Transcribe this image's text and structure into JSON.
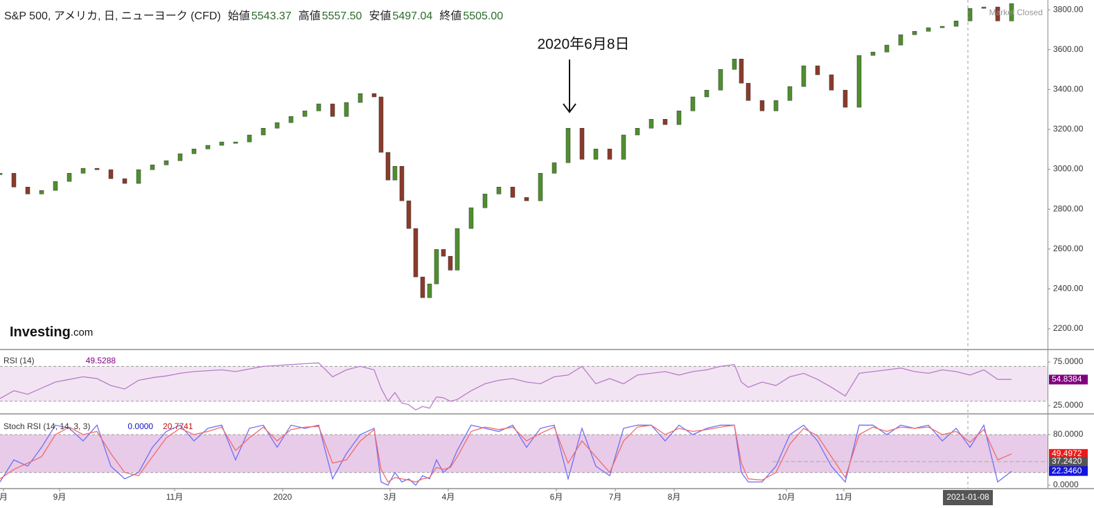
{
  "chart_data": [
    {
      "type": "candlestick",
      "title": "S&P 500, アメリカ, 日, ニューヨーク (CFD)",
      "header_values": [
        {
          "name": "始値",
          "value": "5543.37"
        },
        {
          "name": "高値",
          "value": "5557.50"
        },
        {
          "name": "安値",
          "value": "5497.04"
        },
        {
          "name": "終値",
          "value": "5505.00"
        }
      ],
      "status": "Market Closed",
      "watermark": [
        "Investing",
        ".com"
      ],
      "annotation": "2020年6月8日",
      "annotation_x": 41.1,
      "up_color": "#4f8f2e",
      "down_color": "#8b3b2b",
      "x": [
        0,
        1,
        2,
        3,
        4,
        5,
        6,
        7,
        8,
        9,
        10,
        11,
        12,
        13,
        14,
        15,
        16,
        17,
        18,
        19,
        20,
        21,
        22,
        23,
        24,
        25,
        26,
        27,
        27.5,
        28,
        28.5,
        29,
        29.5,
        30,
        30.5,
        31,
        31.5,
        32,
        32.5,
        33,
        34,
        35,
        36,
        37,
        38,
        39,
        40,
        41,
        42,
        43,
        44,
        45,
        46,
        47,
        48,
        49,
        50,
        51,
        52,
        53,
        53.5,
        54,
        55,
        56,
        57,
        58,
        59,
        60,
        61,
        62,
        63,
        64,
        65,
        66,
        67,
        68,
        69,
        70,
        71,
        72,
        73
      ],
      "series": [
        {
          "values": [
            2980,
            2911,
            2876,
            2894,
            2939,
            2980,
            3005,
            2998,
            2953,
            2929,
            2998,
            3022,
            3043,
            3078,
            3102,
            3120,
            3137,
            3137,
            3172,
            3206,
            3234,
            3265,
            3293,
            3328,
            3265,
            3335,
            3380,
            3363,
            3085,
            2946,
            3015,
            2842,
            2703,
            2460,
            2356,
            2425,
            2598,
            2564,
            2494,
            2703,
            2807,
            2876,
            2911,
            2859,
            2842,
            2980,
            3033,
            3206,
            3050,
            3102,
            3050,
            3172,
            3206,
            3251,
            3224,
            3293,
            3363,
            3397,
            3501,
            3553,
            3432,
            3345,
            3293,
            3345,
            3415,
            3519,
            3474,
            3397,
            3311,
            3571,
            3588,
            3623,
            3675,
            3692,
            3710,
            3717,
            3744,
            3807,
            3814,
            3744,
            3831
          ]
        }
      ],
      "xlim": [
        0,
        75.6
      ],
      "ylim": [
        2096,
        3849
      ],
      "yticks": [
        {
          "value": 2200,
          "label": "2200.00"
        },
        {
          "value": 2400,
          "label": "2400.00"
        },
        {
          "value": 2600,
          "label": "2600.00"
        },
        {
          "value": 2800,
          "label": "2800.00"
        },
        {
          "value": 3000,
          "label": "3000.00"
        },
        {
          "value": 3200,
          "label": "3200.00"
        },
        {
          "value": 3400,
          "label": "3400.00"
        },
        {
          "value": 3600,
          "label": "3600.00"
        },
        {
          "value": 3800,
          "label": "3800.00"
        }
      ],
      "xticks": [
        {
          "value": 0.25,
          "label": "月"
        },
        {
          "value": 4.3,
          "label": "9月"
        },
        {
          "value": 12.6,
          "label": "11月"
        },
        {
          "value": 20.4,
          "label": "2020"
        },
        {
          "value": 28.15,
          "label": "3月"
        },
        {
          "value": 32.35,
          "label": "4月"
        },
        {
          "value": 40.15,
          "label": "6月"
        },
        {
          "value": 44.4,
          "label": "7月"
        },
        {
          "value": 48.65,
          "label": "8月"
        },
        {
          "value": 56.75,
          "label": "10月"
        },
        {
          "value": 60.9,
          "label": "11月"
        }
      ],
      "crosshair_x": {
        "value": 69.85,
        "label": "2021-01-08"
      }
    },
    {
      "type": "line",
      "title": "RSI (14)",
      "x": [
        0,
        1,
        2,
        3,
        4,
        5,
        6,
        7,
        8,
        9,
        10,
        11,
        12,
        13,
        14,
        15,
        16,
        17,
        18,
        19,
        20,
        21,
        22,
        23,
        24,
        25,
        26,
        27,
        27.5,
        28,
        28.5,
        29,
        29.5,
        30,
        30.5,
        31,
        31.5,
        32,
        32.5,
        33,
        34,
        35,
        36,
        37,
        38,
        39,
        40,
        41,
        42,
        43,
        44,
        45,
        46,
        47,
        48,
        49,
        50,
        51,
        52,
        53,
        53.5,
        54,
        55,
        56,
        57,
        58,
        59,
        60,
        61,
        62,
        63,
        64,
        65,
        66,
        67,
        68,
        69,
        70,
        71,
        72,
        73
      ],
      "series": [
        {
          "color": "#b57cc8",
          "legend_value": "49.5288",
          "values": [
            33,
            42,
            38,
            45,
            52,
            55,
            58,
            56,
            48,
            44,
            54,
            57,
            59,
            62,
            64,
            65,
            66,
            64,
            67,
            70,
            71,
            72,
            73,
            74,
            58,
            66,
            70,
            66,
            45,
            30,
            40,
            28,
            26,
            20,
            24,
            22,
            35,
            34,
            30,
            32,
            42,
            50,
            54,
            56,
            52,
            50,
            58,
            60,
            70,
            50,
            56,
            50,
            60,
            62,
            64,
            60,
            64,
            66,
            70,
            72,
            52,
            46,
            52,
            48,
            58,
            62,
            55,
            46,
            36,
            62,
            64,
            66,
            68,
            64,
            62,
            66,
            64,
            60,
            66,
            55,
            55
          ]
        }
      ],
      "ylim": [
        15.5,
        88.5
      ],
      "bands": [
        70,
        30
      ],
      "band_color": "#f3e4f3",
      "yticks": [
        {
          "value": 25,
          "label": "25.0000"
        },
        {
          "value": 75,
          "label": "75.0000"
        }
      ],
      "markers": [
        {
          "value": 54.8384,
          "label": "54.8384",
          "color": "#800080"
        }
      ]
    },
    {
      "type": "line",
      "title": "Stoch RSI (14, 14, 3, 3)",
      "x": [
        0,
        1,
        2,
        3,
        4,
        5,
        6,
        7,
        8,
        9,
        10,
        11,
        12,
        13,
        14,
        15,
        16,
        17,
        18,
        19,
        20,
        21,
        22,
        23,
        24,
        25,
        26,
        27,
        27.5,
        28,
        28.5,
        29,
        29.5,
        30,
        30.5,
        31,
        31.5,
        32,
        32.5,
        33,
        34,
        35,
        36,
        37,
        38,
        39,
        40,
        41,
        42,
        43,
        44,
        45,
        46,
        47,
        48,
        49,
        50,
        51,
        52,
        53,
        53.5,
        54,
        55,
        56,
        57,
        58,
        59,
        60,
        61,
        62,
        63,
        64,
        65,
        66,
        67,
        68,
        69,
        70,
        71,
        72,
        73
      ],
      "series": [
        {
          "color": "#6e6ef5",
          "legend_value": "0.0000",
          "values": [
            5,
            40,
            30,
            60,
            95,
            90,
            70,
            95,
            30,
            10,
            20,
            60,
            85,
            95,
            70,
            90,
            95,
            40,
            90,
            95,
            60,
            95,
            90,
            95,
            10,
            50,
            80,
            90,
            5,
            0,
            20,
            5,
            10,
            0,
            15,
            10,
            40,
            20,
            30,
            55,
            95,
            90,
            85,
            95,
            60,
            90,
            95,
            10,
            90,
            30,
            15,
            90,
            95,
            95,
            70,
            95,
            80,
            90,
            95,
            95,
            20,
            5,
            5,
            30,
            80,
            95,
            70,
            30,
            5,
            95,
            95,
            80,
            95,
            90,
            95,
            70,
            90,
            60,
            95,
            5,
            22
          ]
        },
        {
          "color": "#f06a6a",
          "legend_value": "20.7741",
          "values": [
            10,
            25,
            35,
            45,
            80,
            92,
            80,
            85,
            50,
            20,
            15,
            45,
            75,
            90,
            80,
            85,
            92,
            55,
            75,
            92,
            70,
            88,
            92,
            93,
            35,
            40,
            70,
            88,
            25,
            5,
            12,
            10,
            8,
            5,
            10,
            12,
            28,
            25,
            28,
            45,
            85,
            92,
            88,
            92,
            70,
            82,
            92,
            35,
            70,
            45,
            20,
            70,
            92,
            95,
            80,
            90,
            85,
            88,
            92,
            95,
            35,
            10,
            8,
            20,
            65,
            90,
            78,
            45,
            12,
            80,
            92,
            85,
            92,
            90,
            92,
            80,
            85,
            68,
            88,
            40,
            49.5
          ]
        }
      ],
      "ylim": [
        -5.5,
        111.8
      ],
      "bands": [
        80,
        20
      ],
      "band_color": "#e8cbe8",
      "yticks": [
        {
          "value": 0,
          "label": "0.0000"
        },
        {
          "value": 80,
          "label": "80.0000"
        }
      ],
      "markers": [
        {
          "value": 49.4972,
          "label": "49.4972",
          "color": "#f01818"
        },
        {
          "value": 37.242,
          "label": "37.2420",
          "color": "#555555"
        },
        {
          "value": 22.346,
          "label": "22.3460",
          "color": "#1414e0"
        }
      ]
    }
  ]
}
